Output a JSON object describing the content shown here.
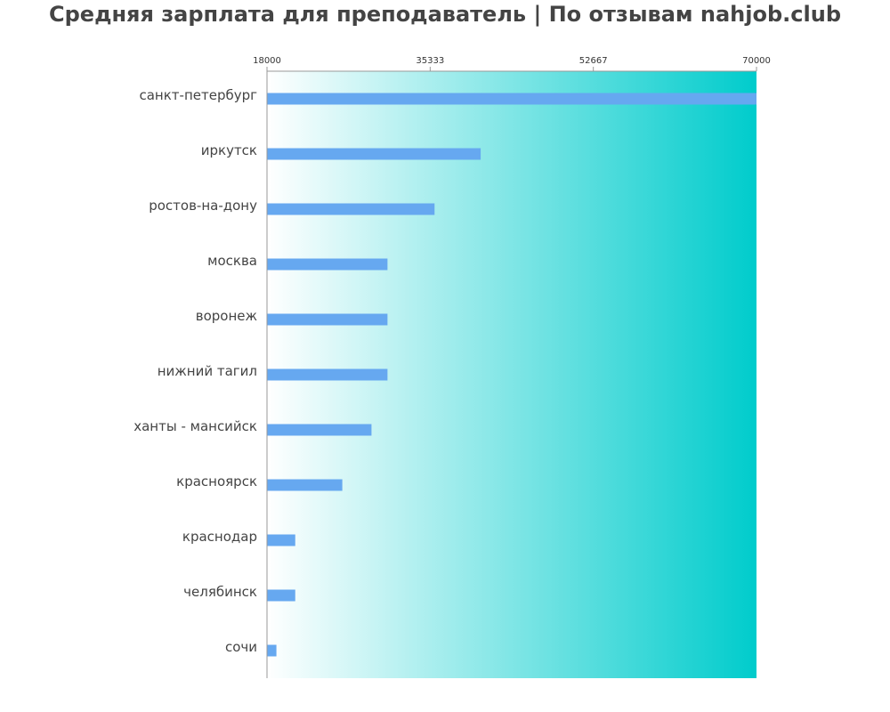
{
  "chart_data": {
    "type": "bar",
    "orientation": "horizontal",
    "title": "Средняя зарплата для преподаватель | По отзывам nahjob.club",
    "xlabel": "",
    "ylabel": "",
    "xlim": [
      18000,
      70000
    ],
    "x_ticks": [
      "18000",
      "35333",
      "52667",
      "70000"
    ],
    "categories": [
      "санкт-петербург",
      "иркутск",
      "ростов-на-дону",
      "москва",
      "воронеж",
      "нижний тагил",
      "ханты - мансийск",
      "красноярск",
      "краснодар",
      "челябинск",
      "сочи"
    ],
    "values": [
      70000,
      40700,
      35800,
      30800,
      30800,
      30800,
      29100,
      26000,
      21000,
      21000,
      19000
    ],
    "grid": false,
    "legend": "none",
    "colors": {
      "bar": "#66a8f0",
      "gradient_start": "#ffffff",
      "gradient_end": "#00cccc",
      "axis": "#999999",
      "title": "#444444"
    }
  }
}
